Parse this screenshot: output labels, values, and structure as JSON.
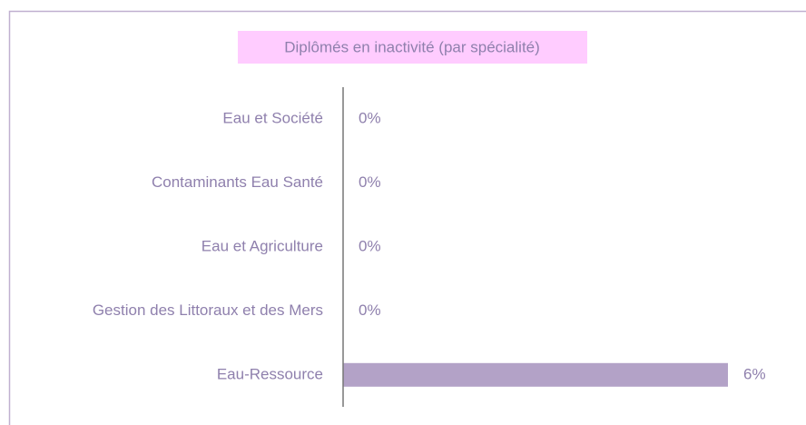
{
  "chart_data": {
    "type": "hbar",
    "title": "Diplômés en inactivité (par spécialité)",
    "categories": [
      "Eau et Société",
      "Contaminants Eau Santé",
      "Eau et Agriculture",
      "Gestion des Littoraux et des Mers",
      "Eau-Ressource"
    ],
    "values": [
      0,
      0,
      0,
      0,
      6
    ],
    "value_labels": [
      "0%",
      "0%",
      "0%",
      "0%",
      "6%"
    ],
    "color": "#b3a2c7",
    "xlim": [
      0,
      6
    ]
  }
}
